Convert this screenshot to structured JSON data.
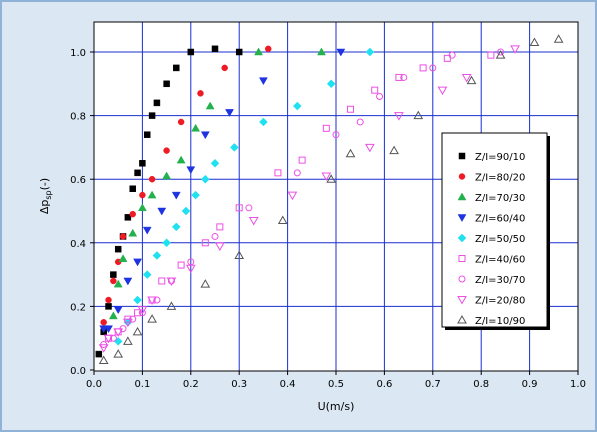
{
  "chart_data": {
    "type": "scatter",
    "xlabel": "U(m/s)",
    "ylabel": "Δp",
    "ylabel_sub": "sp",
    "ylabel_suffix": "(-)",
    "xlim": [
      0.0,
      1.0
    ],
    "ylim": [
      0.0,
      1.1
    ],
    "xticks": [
      "0.0",
      "0.1",
      "0.2",
      "0.3",
      "0.4",
      "0.5",
      "0.6",
      "0.7",
      "0.8",
      "0.9",
      "1.0"
    ],
    "yticks": [
      "0.0",
      "0.2",
      "0.4",
      "0.6",
      "0.8",
      "1.0"
    ],
    "grid": true,
    "legend_position": "right",
    "series": [
      {
        "name": "Z/I=90/10",
        "marker": "square",
        "filled": true,
        "color": "#000000",
        "x": [
          0.01,
          0.02,
          0.03,
          0.04,
          0.05,
          0.06,
          0.07,
          0.08,
          0.09,
          0.1,
          0.11,
          0.12,
          0.13,
          0.15,
          0.17,
          0.2,
          0.25,
          0.3
        ],
        "y": [
          0.05,
          0.12,
          0.2,
          0.3,
          0.38,
          0.42,
          0.48,
          0.57,
          0.62,
          0.65,
          0.74,
          0.8,
          0.84,
          0.9,
          0.95,
          1.0,
          1.01,
          1.0
        ]
      },
      {
        "name": "Z/I=80/20",
        "marker": "circle",
        "filled": true,
        "color": "#ee1b24",
        "x": [
          0.02,
          0.03,
          0.04,
          0.05,
          0.06,
          0.08,
          0.1,
          0.12,
          0.15,
          0.18,
          0.22,
          0.27,
          0.36
        ],
        "y": [
          0.15,
          0.22,
          0.28,
          0.34,
          0.42,
          0.49,
          0.55,
          0.6,
          0.69,
          0.78,
          0.87,
          0.95,
          1.01
        ]
      },
      {
        "name": "Z/I=70/30",
        "marker": "triangle",
        "filled": true,
        "color": "#22b14c",
        "x": [
          0.04,
          0.05,
          0.06,
          0.08,
          0.1,
          0.12,
          0.15,
          0.18,
          0.21,
          0.24,
          0.34,
          0.47
        ],
        "y": [
          0.17,
          0.27,
          0.35,
          0.43,
          0.51,
          0.55,
          0.61,
          0.66,
          0.76,
          0.83,
          1.0,
          1.0
        ]
      },
      {
        "name": "Z/I=60/40",
        "marker": "triangle-down",
        "filled": true,
        "color": "#1f33e0",
        "x": [
          0.02,
          0.03,
          0.05,
          0.07,
          0.09,
          0.11,
          0.14,
          0.17,
          0.2,
          0.23,
          0.28,
          0.35,
          0.51
        ],
        "y": [
          0.13,
          0.13,
          0.19,
          0.28,
          0.34,
          0.44,
          0.5,
          0.55,
          0.63,
          0.74,
          0.81,
          0.91,
          1.0
        ]
      },
      {
        "name": "Z/I=50/50",
        "marker": "diamond",
        "filled": true,
        "color": "#1fe1f0",
        "x": [
          0.05,
          0.07,
          0.09,
          0.11,
          0.13,
          0.15,
          0.17,
          0.19,
          0.21,
          0.23,
          0.25,
          0.29,
          0.35,
          0.42,
          0.49,
          0.57
        ],
        "y": [
          0.09,
          0.15,
          0.22,
          0.3,
          0.36,
          0.4,
          0.45,
          0.5,
          0.55,
          0.6,
          0.65,
          0.7,
          0.78,
          0.83,
          0.9,
          1.0
        ]
      },
      {
        "name": "Z/I=40/60",
        "marker": "square",
        "filled": false,
        "color": "#ec4fe6",
        "x": [
          0.03,
          0.05,
          0.07,
          0.09,
          0.12,
          0.14,
          0.18,
          0.23,
          0.26,
          0.3,
          0.38,
          0.43,
          0.48,
          0.53,
          0.58,
          0.63,
          0.68,
          0.73,
          0.82
        ],
        "y": [
          0.1,
          0.12,
          0.16,
          0.18,
          0.22,
          0.28,
          0.33,
          0.4,
          0.45,
          0.51,
          0.62,
          0.66,
          0.76,
          0.82,
          0.88,
          0.92,
          0.95,
          0.98,
          0.99
        ]
      },
      {
        "name": "Z/I=30/70",
        "marker": "circle",
        "filled": false,
        "color": "#ec4fe6",
        "x": [
          0.02,
          0.04,
          0.06,
          0.08,
          0.1,
          0.13,
          0.16,
          0.2,
          0.25,
          0.32,
          0.42,
          0.5,
          0.55,
          0.59,
          0.64,
          0.7,
          0.74,
          0.84
        ],
        "y": [
          0.08,
          0.1,
          0.13,
          0.16,
          0.18,
          0.22,
          0.28,
          0.34,
          0.42,
          0.51,
          0.62,
          0.74,
          0.78,
          0.86,
          0.92,
          0.95,
          0.99,
          1.0
        ]
      },
      {
        "name": "Z/I=20/80",
        "marker": "triangle-down",
        "filled": false,
        "color": "#ec4fe6",
        "x": [
          0.02,
          0.03,
          0.05,
          0.07,
          0.1,
          0.12,
          0.16,
          0.2,
          0.26,
          0.33,
          0.41,
          0.48,
          0.57,
          0.63,
          0.72,
          0.77,
          0.87
        ],
        "y": [
          0.07,
          0.1,
          0.12,
          0.15,
          0.19,
          0.22,
          0.28,
          0.32,
          0.39,
          0.47,
          0.55,
          0.61,
          0.7,
          0.8,
          0.88,
          0.92,
          1.01
        ]
      },
      {
        "name": "Z/I=10/90",
        "marker": "triangle",
        "filled": false,
        "color": "#555555",
        "x": [
          0.02,
          0.05,
          0.07,
          0.09,
          0.12,
          0.16,
          0.23,
          0.3,
          0.39,
          0.49,
          0.53,
          0.62,
          0.67,
          0.78,
          0.84,
          0.91,
          0.96
        ],
        "y": [
          0.03,
          0.05,
          0.09,
          0.12,
          0.16,
          0.2,
          0.27,
          0.36,
          0.47,
          0.6,
          0.68,
          0.69,
          0.8,
          0.91,
          0.99,
          1.03,
          1.04
        ]
      }
    ]
  }
}
